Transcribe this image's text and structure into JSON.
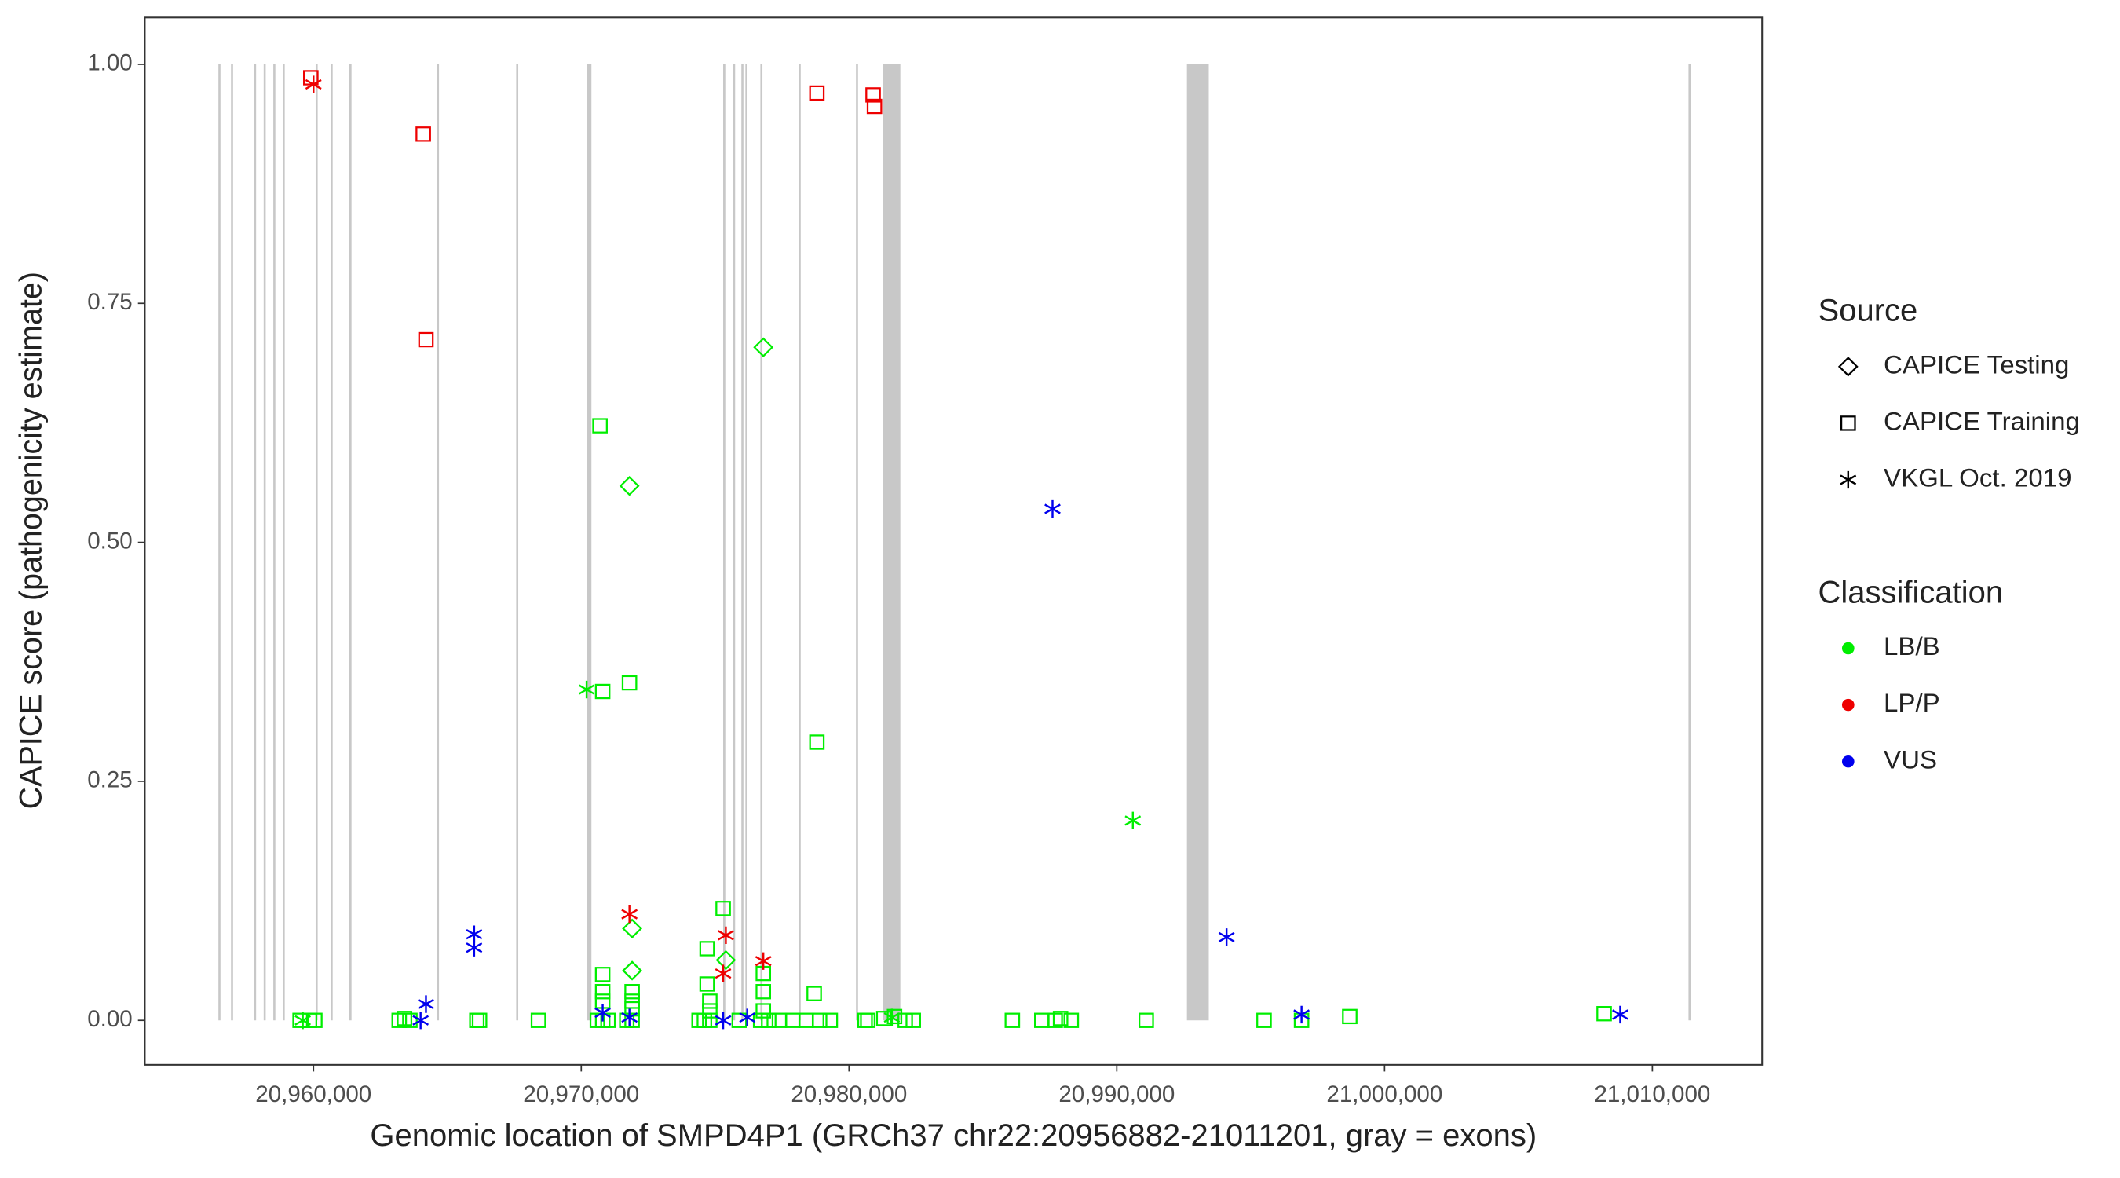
{
  "chart_data": {
    "type": "scatter",
    "x_label": "Genomic location of SMPD4P1 (GRCh37 chr22:20956882-21011201, gray = exons)",
    "y_label": "CAPICE score (pathogenicity estimate)",
    "xlim": [
      20953700,
      21014100
    ],
    "ylim": [
      -0.0465,
      1.049
    ],
    "xticks": [
      {
        "value": 20960000,
        "label": "20,960,000"
      },
      {
        "value": 20970000,
        "label": "20,970,000"
      },
      {
        "value": 20980000,
        "label": "20,980,000"
      },
      {
        "value": 20990000,
        "label": "20,990,000"
      },
      {
        "value": 21000000,
        "label": "21,000,000"
      },
      {
        "value": 21010000,
        "label": "21,010,000"
      }
    ],
    "yticks": [
      {
        "value": 0,
        "label": "0.00"
      },
      {
        "value": 0.25,
        "label": "0.25"
      },
      {
        "value": 0.5,
        "label": "0.50"
      },
      {
        "value": 0.75,
        "label": "0.75"
      },
      {
        "value": 1,
        "label": "1.00"
      }
    ],
    "exon_color": "#c8c8c8",
    "exons": [
      [
        20956450,
        20956520
      ],
      [
        20956920,
        20956970
      ],
      [
        20957780,
        20957840
      ],
      [
        20958140,
        20958190
      ],
      [
        20958500,
        20958550
      ],
      [
        20958850,
        20958910
      ],
      [
        20960080,
        20960130
      ],
      [
        20960640,
        20960690
      ],
      [
        20961340,
        20961420
      ],
      [
        20964610,
        20964660
      ],
      [
        20967570,
        20967620
      ],
      [
        20970220,
        20970380
      ],
      [
        20975300,
        20975380
      ],
      [
        20975670,
        20975730
      ],
      [
        20975980,
        20976030
      ],
      [
        20976130,
        20976180
      ],
      [
        20976690,
        20976740
      ],
      [
        20978120,
        20978170
      ],
      [
        20980260,
        20980310
      ],
      [
        20981254,
        20981917
      ],
      [
        20992620,
        20993436
      ],
      [
        21011350,
        21011400
      ]
    ],
    "legend_source_title": "Source",
    "sources": [
      {
        "name": "CAPICE Testing",
        "shape": "diamond"
      },
      {
        "name": "CAPICE Training",
        "shape": "square"
      },
      {
        "name": "VKGL Oct. 2019",
        "shape": "asterisk"
      }
    ],
    "legend_class_title": "Classification",
    "classifications": [
      {
        "name": "LB/B",
        "color": "#00ee00"
      },
      {
        "name": "LP/P",
        "color": "#ee0000"
      },
      {
        "name": "VUS",
        "color": "#0000ee"
      }
    ],
    "series": [
      {
        "source": "CAPICE Training",
        "classification": "LB/B",
        "x": [
          20970700,
          20970800,
          20971800,
          20978800,
          20975300,
          20974700,
          20974700,
          20970800,
          20978700,
          20976800,
          21008200,
          20998700,
          20959500,
          20959850,
          20960050,
          20963200,
          20963400,
          20963600,
          20966100,
          20966200,
          20968400,
          20970600,
          20970800,
          20971000,
          20971700,
          20971900,
          20974400,
          20974600,
          20974800,
          20975900,
          20976700,
          20977000,
          20977400,
          20977900,
          20978400,
          20978900,
          20979300,
          20980600,
          20980700,
          20981300,
          20981700,
          20982100,
          20982400,
          20986100,
          20987200,
          20987700,
          20987900,
          20988300,
          20991100,
          20995500,
          20996900,
          20970800,
          20970800,
          20971900,
          20971900,
          20971900,
          20974800,
          20974800,
          20976800,
          20976800
        ],
        "y": [
          0.622,
          0.344,
          0.353,
          0.291,
          0.117,
          0.075,
          0.038,
          0.048,
          0.028,
          0.049,
          0.007,
          0.004,
          0,
          0,
          0,
          0,
          0.002,
          0,
          0,
          0,
          0,
          0,
          0,
          0,
          0,
          0,
          0,
          0,
          0,
          0,
          0,
          0,
          0,
          0,
          0,
          0,
          0,
          0,
          0,
          0.002,
          0.004,
          0,
          0,
          0,
          0,
          0,
          0.002,
          0,
          0,
          0,
          0,
          0.02,
          0.03,
          0.02,
          0.03,
          0.012,
          0.01,
          0.02,
          0.01,
          0.03
        ]
      },
      {
        "source": "CAPICE Training",
        "classification": "LP/P",
        "x": [
          20959900,
          20964100,
          20964200,
          20978800,
          20980900,
          20980950
        ],
        "y": [
          0.986,
          0.927,
          0.712,
          0.97,
          0.968,
          0.956
        ]
      },
      {
        "source": "CAPICE Testing",
        "classification": "LB/B",
        "x": [
          20976800,
          20971800,
          20971900,
          20971900,
          20975400
        ],
        "y": [
          0.704,
          0.559,
          0.096,
          0.052,
          0.063
        ]
      },
      {
        "source": "VKGL Oct. 2019",
        "classification": "LB/B",
        "x": [
          20970200,
          20990600,
          20959600,
          20981600
        ],
        "y": [
          0.346,
          0.209,
          0,
          0.003
        ]
      },
      {
        "source": "VKGL Oct. 2019",
        "classification": "LP/P",
        "x": [
          20960000,
          20971800,
          20975400,
          20975300,
          20976800
        ],
        "y": [
          0.979,
          0.111,
          0.089,
          0.049,
          0.062
        ]
      },
      {
        "source": "VKGL Oct. 2019",
        "classification": "VUS",
        "x": [
          20987600,
          20966000,
          20966000,
          20994100,
          20964200,
          20964000,
          20970800,
          20971800,
          20975300,
          20976200,
          20996900,
          21008800
        ],
        "y": [
          0.535,
          0.09,
          0.076,
          0.087,
          0.017,
          0,
          0.008,
          0.003,
          0,
          0.003,
          0.006,
          0.006
        ]
      }
    ]
  }
}
